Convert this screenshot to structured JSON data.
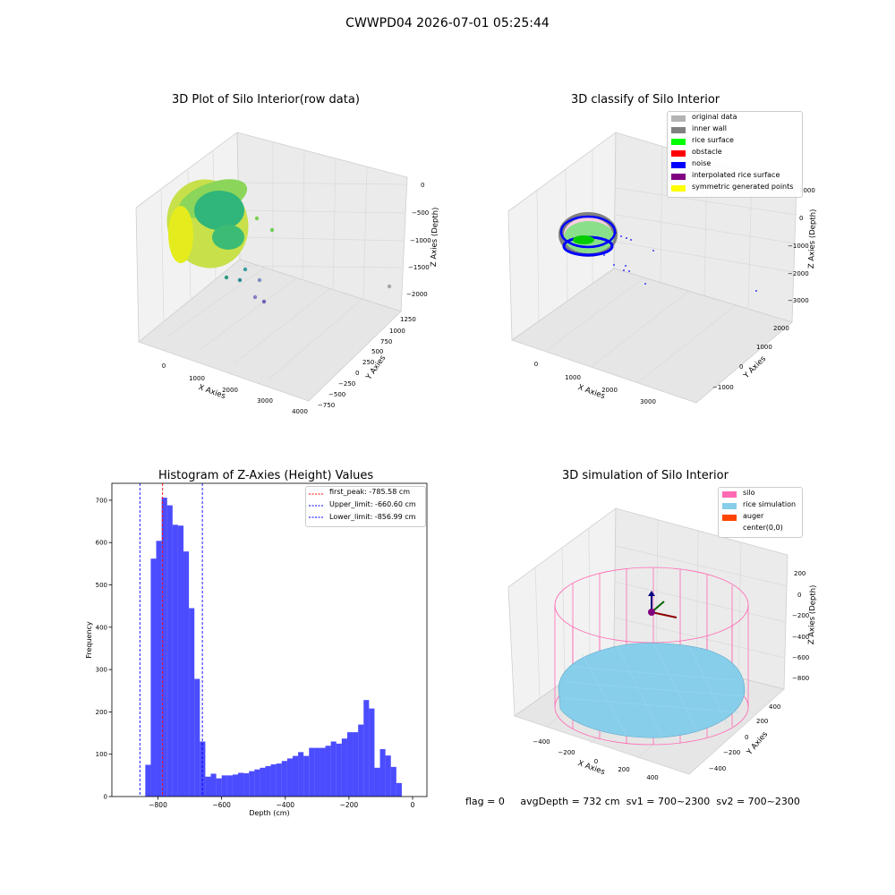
{
  "suptitle": "CWWPD04 2026-07-01 05:25:44",
  "plots": {
    "tl": {
      "title": "3D Plot of Silo Interior(row data)",
      "xlabel": "X Axies",
      "ylabel": "Y Axies",
      "zlabel": "Z Axies (Depth)",
      "xticks": [
        "0",
        "1000",
        "2000",
        "3000",
        "4000"
      ],
      "yticks": [
        "1250",
        "1000",
        "750",
        "500",
        "250",
        "0",
        "−250",
        "−500",
        "−750"
      ],
      "zticks": [
        "0",
        "−500",
        "−1000",
        "−1500",
        "−2000"
      ]
    },
    "tr": {
      "title": "3D classify of Silo Interior",
      "xlabel": "X Axies",
      "ylabel": "Y Axies",
      "zlabel": "Z Axies (Depth)",
      "xticks": [
        "0",
        "1000",
        "2000",
        "3000"
      ],
      "yticks": [
        "2000",
        "1000",
        "0",
        "−1000"
      ],
      "zticks": [
        "1000",
        "0",
        "−1000",
        "−2000",
        "−3000"
      ],
      "legend": [
        {
          "label": "original data",
          "color": "#b3b3b3"
        },
        {
          "label": "inner wall",
          "color": "#808080"
        },
        {
          "label": "rice surface",
          "color": "#00ff00"
        },
        {
          "label": "obstacle",
          "color": "#ff0000"
        },
        {
          "label": "noise",
          "color": "#0000ff"
        },
        {
          "label": "interpolated rice surface",
          "color": "#800080"
        },
        {
          "label": "symmetric generated points",
          "color": "#ffff00"
        }
      ]
    },
    "br": {
      "title": "3D simulation of Silo Interior",
      "xlabel": "X Axies",
      "ylabel": "Y Axies",
      "zlabel": "Z Axies (Depth)",
      "xticks": [
        "−400",
        "−200",
        "0",
        "200",
        "400"
      ],
      "yticks": [
        "400",
        "200",
        "0",
        "−200",
        "−400"
      ],
      "zticks": [
        "200",
        "0",
        "−200",
        "−400",
        "−600",
        "−800"
      ],
      "legend": [
        {
          "label": "silo",
          "color": "#ff69b4"
        },
        {
          "label": "rice simulation",
          "color": "#87ceeb"
        },
        {
          "label": "auger",
          "color": "#ff4500"
        },
        {
          "label": "center(0,0)",
          "color": ""
        }
      ]
    }
  },
  "footer": {
    "flag": "flag = 0",
    "avg": "avgDepth = 732 cm",
    "sv1": "sv1 = 700~2300",
    "sv2": "sv2 = 700~2300"
  },
  "chart_data": [
    {
      "type": "bar",
      "title": "Histogram of Z-Axies (Height) Values",
      "xlabel": "Depth (cm)",
      "ylabel": "Frequency",
      "xlim": [
        -945,
        45
      ],
      "ylim": [
        0,
        740
      ],
      "xticks": [
        -800,
        -600,
        -400,
        -200,
        0
      ],
      "yticks": [
        0,
        100,
        200,
        300,
        400,
        500,
        600,
        700
      ],
      "bin_width": 17.15,
      "bin_start": -840.0,
      "values": [
        75,
        562,
        604,
        706,
        688,
        642,
        640,
        579,
        445,
        278,
        130,
        47,
        54,
        43,
        50,
        50,
        52,
        56,
        55,
        60,
        64,
        68,
        72,
        76,
        78,
        84,
        90,
        96,
        105,
        96,
        115,
        115,
        115,
        120,
        130,
        125,
        137,
        152,
        152,
        170,
        228,
        208,
        68,
        112,
        97,
        70,
        32
      ],
      "bar_color": "#0000ff",
      "lines": [
        {
          "label": "first_peak: -785.58 cm",
          "x": -785.58,
          "color": "#ff0000"
        },
        {
          "label": "Upper_limit: -660.60 cm",
          "x": -660.6,
          "color": "#0000ff"
        },
        {
          "label": "Lower_limit: -856.99 cm",
          "x": -856.99,
          "color": "#0000ff"
        }
      ],
      "legend": "upper right"
    }
  ]
}
